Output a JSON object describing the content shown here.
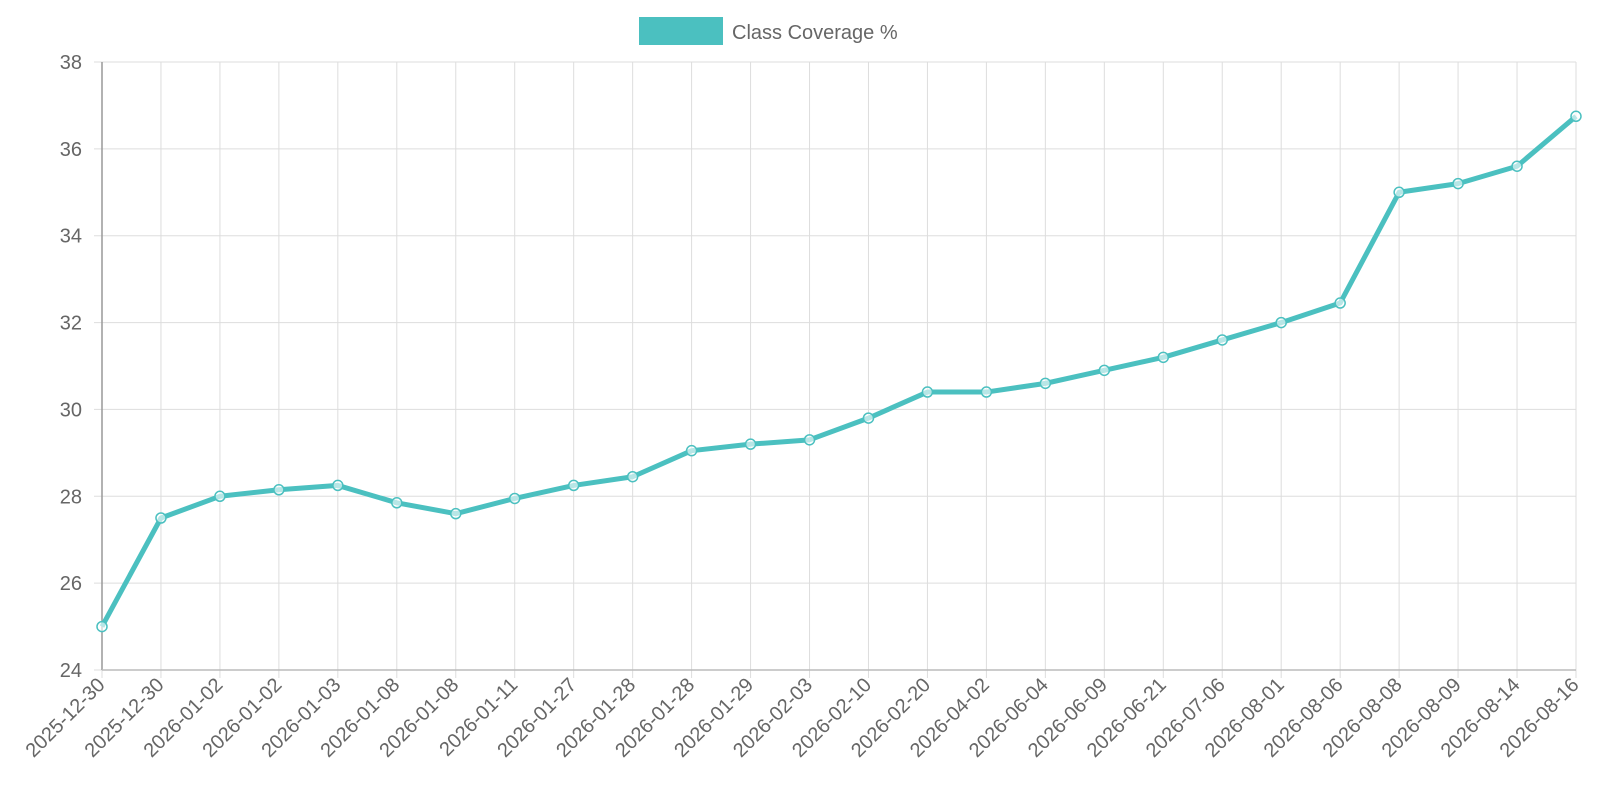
{
  "chart_data": {
    "type": "line",
    "categories": [
      "2025-12-30",
      "2025-12-30",
      "2026-01-02",
      "2026-01-02",
      "2026-01-03",
      "2026-01-08",
      "2026-01-08",
      "2026-01-11",
      "2026-01-27",
      "2026-01-28",
      "2026-01-28",
      "2026-01-29",
      "2026-02-03",
      "2026-02-10",
      "2026-02-20",
      "2026-04-02",
      "2026-06-04",
      "2026-06-09",
      "2026-06-21",
      "2026-07-06",
      "2026-08-01",
      "2026-08-06",
      "2026-08-08",
      "2026-08-09",
      "2026-08-14",
      "2026-08-16"
    ],
    "series": [
      {
        "name": "Class Coverage %",
        "color": "#4bc0c0",
        "values": [
          25.0,
          27.5,
          28.0,
          28.15,
          28.25,
          27.85,
          27.6,
          27.95,
          28.25,
          28.45,
          29.05,
          29.2,
          29.3,
          29.8,
          30.4,
          30.4,
          30.6,
          30.9,
          31.2,
          31.6,
          32.0,
          32.45,
          35.0,
          35.2,
          35.6,
          36.75
        ]
      }
    ],
    "ylim": [
      24,
      38
    ],
    "yticks": [
      24,
      26,
      28,
      30,
      32,
      34,
      36,
      38
    ],
    "grid": true,
    "legend": "top"
  }
}
